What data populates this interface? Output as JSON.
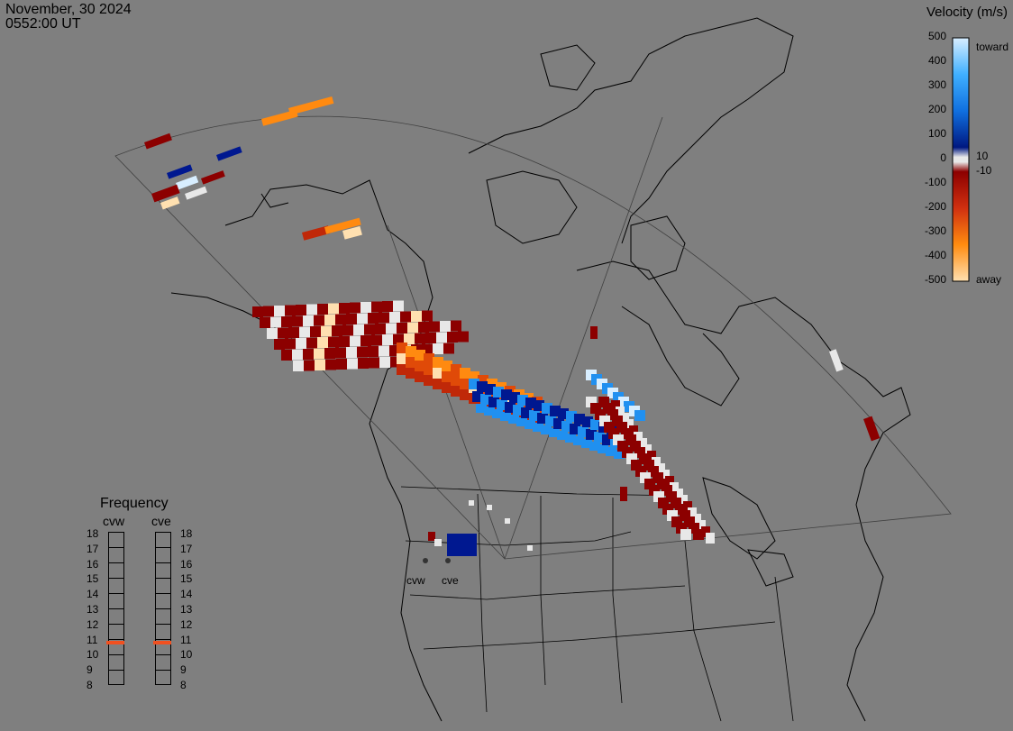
{
  "header": {
    "date": "November, 30 2024",
    "time": "0552:00 UT"
  },
  "colorbar": {
    "title": "Velocity (m/s)",
    "ticks": [
      "500",
      "400",
      "300",
      "200",
      "100",
      "0",
      "-100",
      "-200",
      "-300",
      "-400",
      "-500"
    ],
    "inner_labels": [
      "10",
      "-10"
    ],
    "toward_label": "toward",
    "away_label": "away",
    "colors": {
      "toward_high": "#d8eeff",
      "toward_mid": "#2090f0",
      "toward_low": "#001890",
      "zero": "#e8e8e8",
      "away_low": "#8c0000",
      "away_mid": "#e04a08",
      "away_high": "#ffe0b0"
    }
  },
  "frequency": {
    "title": "Frequency",
    "columns": [
      {
        "name": "cvw",
        "value": 11
      },
      {
        "name": "cve",
        "value": 11
      }
    ],
    "scale": [
      "18",
      "17",
      "16",
      "15",
      "14",
      "13",
      "12",
      "11",
      "10",
      "9",
      "8"
    ]
  },
  "radars": [
    {
      "name": "cvw"
    },
    {
      "name": "cve"
    }
  ]
}
